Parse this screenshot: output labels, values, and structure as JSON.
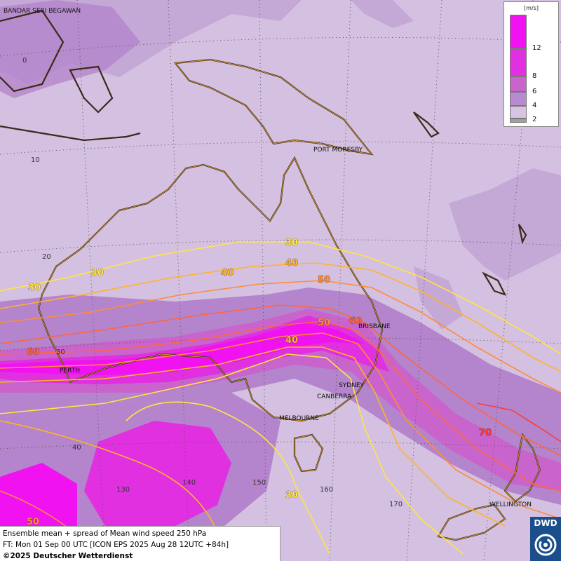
{
  "map": {
    "cities": [
      {
        "name": "BANDAR SERI BEGAWAN"
      },
      {
        "name": "PORT MORESBY"
      },
      {
        "name": "BRISBANE"
      },
      {
        "name": "PERTH"
      },
      {
        "name": "SYDNEY"
      },
      {
        "name": "CANBERRA"
      },
      {
        "name": "MELBOURNE"
      },
      {
        "name": "WELLINGTON"
      }
    ],
    "grid_labels": [
      "0",
      "10",
      "20",
      "30",
      "40",
      "130",
      "140",
      "150",
      "160",
      "170"
    ],
    "isotach_labels": [
      "30",
      "30",
      "30",
      "40",
      "40",
      "50",
      "50",
      "60",
      "60",
      "70",
      "30",
      "50"
    ],
    "colors": {
      "background": "#d4c0e0",
      "light_purple": "#c4a8d6",
      "mid_purple": "#b484cc",
      "deep_purple": "#d75dd7",
      "magenta": "#f012f0",
      "coast": "#d49a34",
      "iso30": "#ffe640",
      "iso40": "#ffb428",
      "iso50": "#ff8c3c",
      "iso60": "#ff6640",
      "iso70": "#ff3c3c"
    }
  },
  "legend": {
    "unit": "[m/s]",
    "ticks": [
      "12",
      "8",
      "6",
      "4",
      "2"
    ],
    "colors": [
      "#f012f0",
      "#e030e0",
      "#c864cc",
      "#b88ad0",
      "#d6c4e2",
      "#a0a0a0"
    ]
  },
  "footer": {
    "line1": "Ensemble mean + spread of Mean wind speed 250 hPa",
    "line2": "FT: Mon 01 Sep 00 UTC [ICON EPS 2025 Aug 28 12UTC +84h]",
    "line3": "©2025 Deutscher Wetterdienst"
  },
  "logo": {
    "text": "DWD"
  }
}
